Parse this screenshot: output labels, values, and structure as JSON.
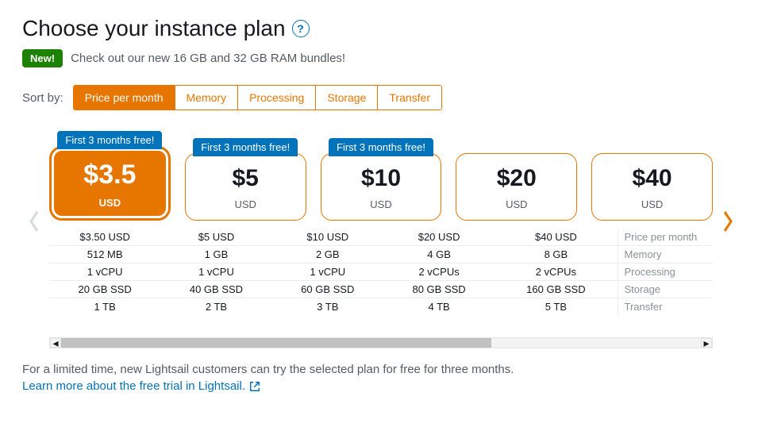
{
  "colors": {
    "accent_orange": "#e77600",
    "link_blue": "#0073bb",
    "badge_green": "#1d8102",
    "muted_text": "#545b64",
    "disabled_arrow": "#d5dbdb",
    "border_light": "#eaeded",
    "label_grey": "#879196"
  },
  "header": {
    "title": "Choose your instance plan",
    "help_tooltip": "?"
  },
  "promo": {
    "badge": "New!",
    "text": "Check out our new 16 GB and 32 GB RAM bundles!"
  },
  "sort": {
    "label": "Sort by:",
    "tabs": [
      {
        "label": "Price per month",
        "active": true
      },
      {
        "label": "Memory",
        "active": false
      },
      {
        "label": "Processing",
        "active": false
      },
      {
        "label": "Storage",
        "active": false
      },
      {
        "label": "Transfer",
        "active": false
      }
    ]
  },
  "plans": [
    {
      "free_banner": "First 3 months free!",
      "price": "$3.5",
      "currency": "USD",
      "selected": true,
      "price_full": "$3.50 USD",
      "memory": "512 MB",
      "processing": "1 vCPU",
      "storage": "20 GB SSD",
      "transfer": "1 TB"
    },
    {
      "free_banner": "First 3 months free!",
      "price": "$5",
      "currency": "USD",
      "selected": false,
      "price_full": "$5 USD",
      "memory": "1 GB",
      "processing": "1 vCPU",
      "storage": "40 GB SSD",
      "transfer": "2 TB"
    },
    {
      "free_banner": "First 3 months free!",
      "price": "$10",
      "currency": "USD",
      "selected": false,
      "price_full": "$10 USD",
      "memory": "2 GB",
      "processing": "1 vCPU",
      "storage": "60 GB SSD",
      "transfer": "3 TB"
    },
    {
      "free_banner": null,
      "price": "$20",
      "currency": "USD",
      "selected": false,
      "price_full": "$20 USD",
      "memory": "4 GB",
      "processing": "2 vCPUs",
      "storage": "80 GB SSD",
      "transfer": "4 TB"
    },
    {
      "free_banner": null,
      "price": "$40",
      "currency": "USD",
      "selected": false,
      "price_full": "$40 USD",
      "memory": "8 GB",
      "processing": "2 vCPUs",
      "storage": "160 GB SSD",
      "transfer": "5 TB"
    }
  ],
  "spec_rows": [
    {
      "key": "price_full",
      "label": "Price per month"
    },
    {
      "key": "memory",
      "label": "Memory"
    },
    {
      "key": "processing",
      "label": "Processing"
    },
    {
      "key": "storage",
      "label": "Storage"
    },
    {
      "key": "transfer",
      "label": "Transfer"
    }
  ],
  "carousel": {
    "left_enabled": false,
    "right_enabled": true
  },
  "footer": {
    "text": "For a limited time, new Lightsail customers can try the selected plan for free for three months.",
    "link_text": "Learn more about the free trial in Lightsail."
  }
}
